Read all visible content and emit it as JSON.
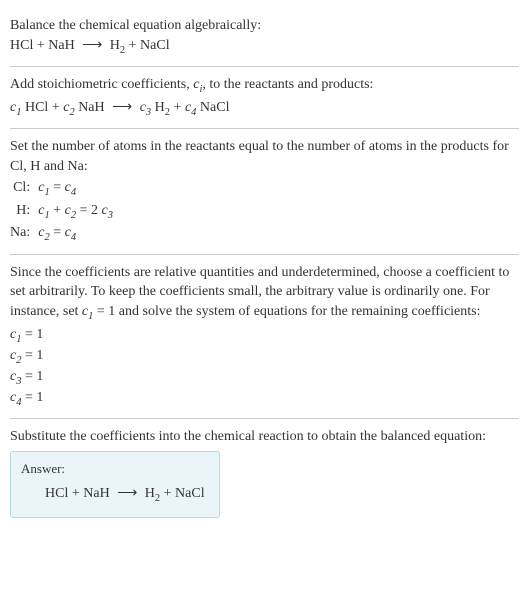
{
  "intro": {
    "line1": "Balance the chemical equation algebraically:",
    "eq_lhs1": "HCl",
    "eq_plus": "+",
    "eq_lhs2": "NaH",
    "arrow": "⟶",
    "eq_rhs1a": "H",
    "eq_rhs1sub": "2",
    "eq_rhs2": "NaCl"
  },
  "stoich": {
    "line1_a": "Add stoichiometric coefficients, ",
    "line1_ci": "c",
    "line1_cisub": "i",
    "line1_b": ", to the reactants and products:",
    "c1": "c",
    "c1s": "1",
    "r1": "HCl",
    "c2": "c",
    "c2s": "2",
    "r2": "NaH",
    "c3": "c",
    "c3s": "3",
    "r3a": "H",
    "r3sub": "2",
    "c4": "c",
    "c4s": "4",
    "r4": "NaCl"
  },
  "atoms": {
    "text": "Set the number of atoms in the reactants equal to the number of atoms in the products for Cl, H and Na:",
    "rows": [
      {
        "el": "Cl:",
        "lhs_a": "c",
        "lhs_as": "1",
        "mid": " = ",
        "rhs_a": "c",
        "rhs_as": "4",
        "extra": ""
      },
      {
        "el": "H:",
        "lhs_a": "c",
        "lhs_as": "1",
        "mid": " + ",
        "lhs_b": "c",
        "lhs_bs": "2",
        "eq": " = 2 ",
        "rhs_a": "c",
        "rhs_as": "3"
      },
      {
        "el": "Na:",
        "lhs_a": "c",
        "lhs_as": "2",
        "mid": " = ",
        "rhs_a": "c",
        "rhs_as": "4",
        "extra": ""
      }
    ]
  },
  "solve": {
    "text_a": "Since the coefficients are relative quantities and underdetermined, choose a coefficient to set arbitrarily. To keep the coefficients small, the arbitrary value is ordinarily one. For instance, set ",
    "cvar": "c",
    "cvars": "1",
    "text_b": " = 1 and solve the system of equations for the remaining coefficients:",
    "coeffs": [
      {
        "v": "c",
        "s": "1",
        "eq": " = 1"
      },
      {
        "v": "c",
        "s": "2",
        "eq": " = 1"
      },
      {
        "v": "c",
        "s": "3",
        "eq": " = 1"
      },
      {
        "v": "c",
        "s": "4",
        "eq": " = 1"
      }
    ]
  },
  "subst": {
    "text": "Substitute the coefficients into the chemical reaction to obtain the balanced equation:"
  },
  "answer": {
    "label": "Answer:",
    "lhs1": "HCl",
    "plus": "+",
    "lhs2": "NaH",
    "arrow": "⟶",
    "rhs1a": "H",
    "rhs1sub": "2",
    "rhs2": "NaCl"
  },
  "colors": {
    "text": "#333333",
    "rule": "#cccccc",
    "answer_bg": "#eaf5f9",
    "answer_border": "#bcd8e0"
  }
}
